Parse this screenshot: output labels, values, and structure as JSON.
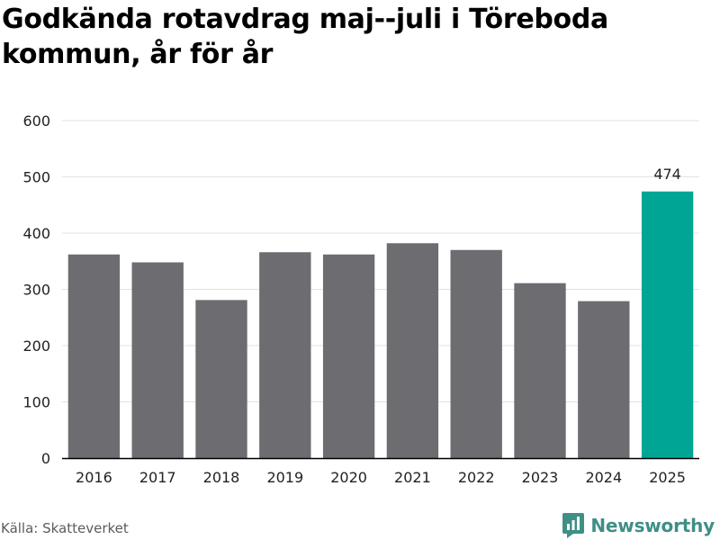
{
  "chart_data": {
    "type": "bar",
    "title": "Godkända rotavdrag maj--juli i Töreboda kommun, år för år",
    "categories": [
      "2016",
      "2017",
      "2018",
      "2019",
      "2020",
      "2021",
      "2022",
      "2023",
      "2024",
      "2025"
    ],
    "values": [
      362,
      348,
      281,
      366,
      362,
      382,
      370,
      311,
      279,
      474
    ],
    "data_labels": [
      {
        "category": "2025",
        "value": 474,
        "text": "474"
      }
    ],
    "xlabel": "",
    "ylabel": "",
    "ylim": [
      0,
      600
    ],
    "yticks": [
      0,
      100,
      200,
      300,
      400,
      500,
      600
    ],
    "grid": "horizontal",
    "legend": "none",
    "colors": {
      "bar": "#6d6c71",
      "highlight": "#00a595",
      "grid": "#e2e2e2",
      "axis": "#000000"
    },
    "highlight_category": "2025"
  },
  "footer": {
    "source": "Källa: Skatteverket",
    "brand": "Newsworthy",
    "brand_icon": "newsworthy-logo-icon",
    "brand_color": "#3f8f86"
  }
}
